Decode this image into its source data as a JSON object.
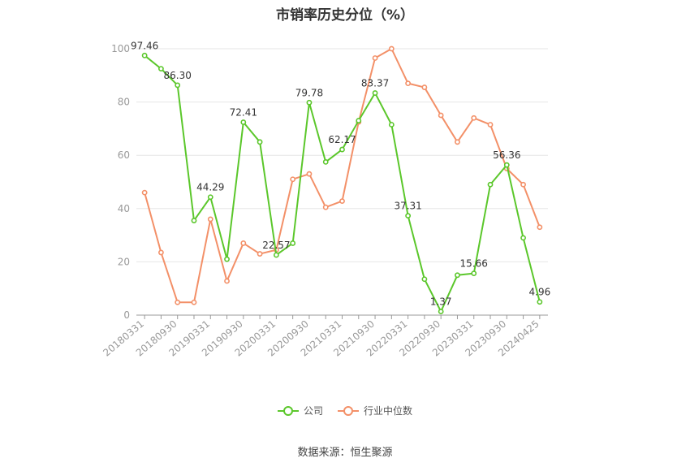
{
  "title": "市销率历史分位（%）",
  "source": "数据来源：恒生聚源",
  "colors": {
    "company": "#5bc72b",
    "industry": "#f39068",
    "grid": "#e6e6e6",
    "axis": "#999999",
    "tick_text": "#999999",
    "label_text": "#333333"
  },
  "legend": [
    {
      "name": "公司",
      "color": "#5bc72b"
    },
    {
      "name": "行业中位数",
      "color": "#f39068"
    }
  ],
  "chart_data": {
    "type": "line",
    "title": "市销率历史分位（%）",
    "xlabel": "",
    "ylabel": "",
    "ylim": [
      0,
      100
    ],
    "yticks": [
      0,
      20,
      40,
      60,
      80,
      100
    ],
    "grid": true,
    "legend_position": "bottom",
    "x": [
      "20180331",
      "20180630",
      "20180930",
      "20181231",
      "20190331",
      "20190630",
      "20190930",
      "20191231",
      "20200331",
      "20200630",
      "20200930",
      "20201231",
      "20210331",
      "20210630",
      "20210930",
      "20211231",
      "20220331",
      "20220630",
      "20220930",
      "20221231",
      "20230331",
      "20230630",
      "20230930",
      "20231231",
      "20240425"
    ],
    "x_tick_labels": [
      "20180331",
      "20180930",
      "20190331",
      "20190930",
      "20200331",
      "20200930",
      "20210331",
      "20210930",
      "20220331",
      "20220930",
      "20230331",
      "20230930",
      "20240425"
    ],
    "series": [
      {
        "name": "公司",
        "values": [
          97.46,
          92.5,
          86.3,
          35.5,
          44.29,
          21.0,
          72.41,
          65.0,
          22.57,
          27.0,
          79.78,
          57.5,
          62.17,
          73.0,
          83.37,
          71.5,
          37.31,
          13.5,
          1.37,
          15.0,
          15.66,
          49.0,
          56.36,
          29.0,
          4.96
        ],
        "labels": {
          "0": "97.46",
          "2": "86.30",
          "4": "44.29",
          "6": "72.41",
          "8": "22.57",
          "10": "79.78",
          "12": "62.17",
          "14": "83.37",
          "16": "37.31",
          "18": "1.37",
          "20": "15.66",
          "22": "56.36",
          "24": "4.96"
        }
      },
      {
        "name": "行业中位数",
        "values": [
          46.0,
          23.5,
          4.8,
          4.8,
          36.0,
          12.8,
          27.0,
          23.0,
          24.5,
          51.0,
          53.0,
          40.5,
          42.8,
          72.5,
          96.5,
          100.0,
          87.0,
          85.5,
          75.0,
          65.0,
          74.0,
          71.5,
          55.0,
          49.0,
          33.0
        ]
      }
    ]
  }
}
